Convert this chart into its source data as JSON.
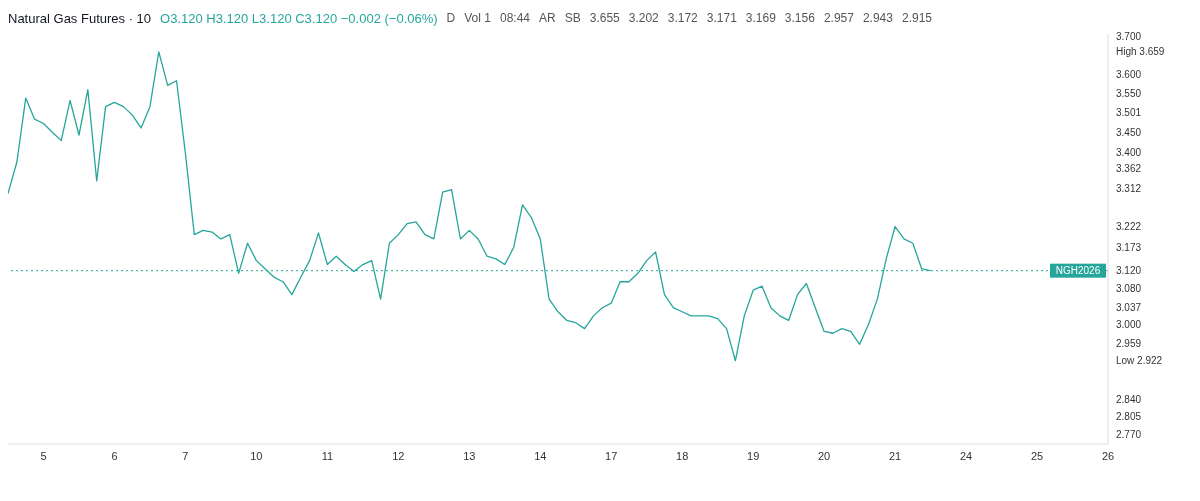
{
  "chart_data": {
    "type": "line",
    "title": "Natural Gas Futures · 10",
    "subtitle": "O3.120 H3.120 L3.120 C3.120 −0.002 (−0.06%)",
    "color": "#26a69a",
    "log": "y",
    "grid": false,
    "legend": false,
    "marker": "none",
    "line_style": "solid",
    "categories": [
      null,
      null,
      null,
      null,
      "5",
      null,
      null,
      null,
      null,
      null,
      null,
      null,
      "6",
      null,
      null,
      null,
      null,
      null,
      null,
      null,
      "7",
      null,
      null,
      null,
      null,
      null,
      null,
      null,
      "10",
      null,
      null,
      null,
      null,
      null,
      null,
      null,
      "11",
      null,
      null,
      null,
      null,
      null,
      null,
      null,
      "12",
      null,
      null,
      null,
      null,
      null,
      null,
      null,
      "13",
      null,
      null,
      null,
      null,
      null,
      null,
      null,
      "14",
      null,
      null,
      null,
      null,
      null,
      null,
      null,
      "17",
      null,
      null,
      null,
      null,
      null,
      null,
      null,
      "18",
      null,
      null,
      null,
      null,
      null,
      null,
      null,
      "19",
      null,
      null,
      null,
      null,
      null,
      null,
      null,
      "20",
      null,
      null,
      null,
      null,
      null,
      null,
      null,
      "21",
      null,
      null,
      null,
      null,
      null,
      null,
      null,
      "24",
      null,
      null,
      null,
      null,
      null,
      null,
      null,
      "25",
      null,
      null,
      null,
      null,
      null,
      null,
      null,
      "26"
    ],
    "values": [
      3.3,
      3.377,
      3.538,
      3.484,
      3.473,
      3.451,
      3.43,
      3.532,
      3.444,
      3.56,
      3.331,
      3.516,
      3.527,
      3.516,
      3.495,
      3.462,
      3.516,
      3.659,
      3.571,
      3.583,
      3.398,
      3.203,
      3.213,
      3.209,
      3.193,
      3.203,
      3.114,
      3.183,
      3.143,
      3.124,
      3.105,
      3.095,
      3.066,
      3.105,
      3.143,
      3.207,
      3.134,
      3.153,
      3.134,
      3.118,
      3.134,
      3.143,
      3.056,
      3.183,
      3.203,
      3.229,
      3.233,
      3.203,
      3.193,
      3.304,
      3.31,
      3.193,
      3.213,
      3.193,
      3.153,
      3.147,
      3.134,
      3.173,
      3.273,
      3.243,
      3.193,
      3.056,
      3.028,
      3.009,
      3.004,
      2.991,
      3.019,
      3.037,
      3.047,
      3.095,
      3.095,
      3.114,
      3.143,
      3.163,
      3.066,
      3.037,
      3.028,
      3.019,
      3.019,
      3.019,
      3.013,
      2.991,
      2.922,
      3.019,
      3.076,
      3.085,
      3.037,
      3.019,
      3.009,
      3.066,
      3.091,
      3.037,
      2.985,
      2.981,
      2.991,
      2.985,
      2.957,
      3.0,
      3.056,
      3.147,
      3.222,
      3.193,
      3.183,
      3.124,
      3.12,
      null,
      null,
      null,
      null,
      null,
      null,
      null,
      null,
      null,
      null,
      null,
      null,
      null,
      null,
      null,
      null,
      null,
      null,
      null,
      null
    ],
    "ylim": [
      2.75,
      3.707
    ],
    "yticks": [
      {
        "value": 3.7,
        "label": "3.700"
      },
      {
        "value": 3.659,
        "label": "High 3.659"
      },
      {
        "value": 3.6,
        "label": "3.600"
      },
      {
        "value": 3.55,
        "label": "3.550"
      },
      3.501,
      {
        "value": 3.45,
        "label": "3.450"
      },
      {
        "value": 3.4,
        "label": "3.400"
      },
      3.362,
      3.312,
      3.222,
      3.173,
      {
        "value": 3.12,
        "label": "3.120"
      },
      {
        "value": 3.08,
        "label": "3.080"
      },
      3.037,
      {
        "value": 3.0,
        "label": "3.000"
      },
      2.959,
      {
        "value": 2.922,
        "label": "Low 2.922"
      },
      {
        "value": 2.84,
        "label": "2.840"
      },
      2.805,
      {
        "value": 2.77,
        "label": "2.770"
      }
    ],
    "ref_lines": [
      {
        "axis": "y",
        "value": 3.12,
        "label": "NGH2026",
        "color": "#26a69a",
        "line_style": "dotted"
      }
    ],
    "annotations": [
      "D",
      "Vol 1",
      "08:44",
      "AR",
      "SB",
      "3.655",
      "3.202",
      "3.172",
      "3.171",
      "3.169",
      "3.156",
      "2.957",
      "2.943",
      "2.915"
    ]
  }
}
